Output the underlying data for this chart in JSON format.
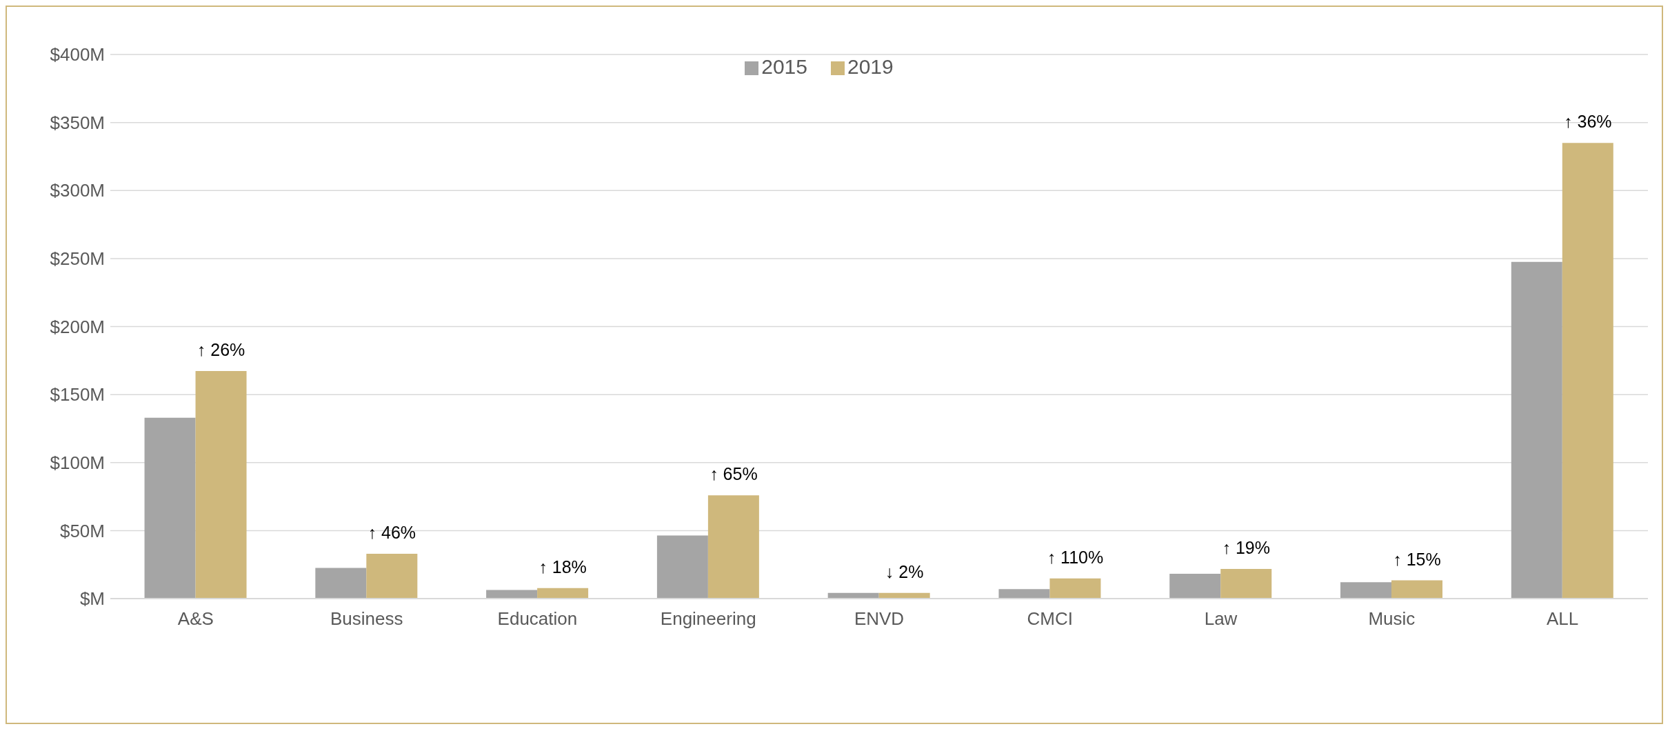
{
  "chart_data": {
    "type": "bar",
    "categories": [
      "A&S",
      "Business",
      "Education",
      "Engineering",
      "ENVD",
      "CMCI",
      "Law",
      "Music",
      "ALL"
    ],
    "series": [
      {
        "name": "2015",
        "color": "#a5a5a5",
        "values": [
          133,
          22.5,
          6.3,
          46.4,
          4.2,
          7,
          18.3,
          12,
          247.5
        ]
      },
      {
        "name": "2019",
        "color": "#cfb87c",
        "values": [
          167.3,
          33,
          7.7,
          75.9,
          4.2,
          14.8,
          21.8,
          13.4,
          335
        ]
      }
    ],
    "ylim": [
      0,
      400
    ],
    "yticks": [
      {
        "value": 0,
        "label": "$M"
      },
      {
        "value": 50,
        "label": "$50M"
      },
      {
        "value": 100,
        "label": "$100M"
      },
      {
        "value": 150,
        "label": "$150M"
      },
      {
        "value": 200,
        "label": "$200M"
      },
      {
        "value": 250,
        "label": "$250M"
      },
      {
        "value": 300,
        "label": "$300M"
      },
      {
        "value": 350,
        "label": "$350M"
      },
      {
        "value": 400,
        "label": "$400M"
      }
    ],
    "grid": "y",
    "legend": "top",
    "annotations": [
      {
        "text": "↑ 26%",
        "x": "A&S",
        "y": 167.3
      },
      {
        "text": "↑ 46%",
        "x": "Business",
        "y": 33
      },
      {
        "text": "↑ 18%",
        "x": "Education",
        "y": 7.7
      },
      {
        "text": "↑ 65%",
        "x": "Engineering",
        "y": 75.9
      },
      {
        "text": "↓ 2%",
        "x": "ENVD",
        "y": 4.2
      },
      {
        "text": "↑ 110%",
        "x": "CMCI",
        "y": 14.8
      },
      {
        "text": "↑ 19%",
        "x": "Law",
        "y": 21.8
      },
      {
        "text": "↑ 15%",
        "x": "Music",
        "y": 13.4
      },
      {
        "text": "↑ 36%",
        "x": "ALL",
        "y": 335
      }
    ]
  }
}
